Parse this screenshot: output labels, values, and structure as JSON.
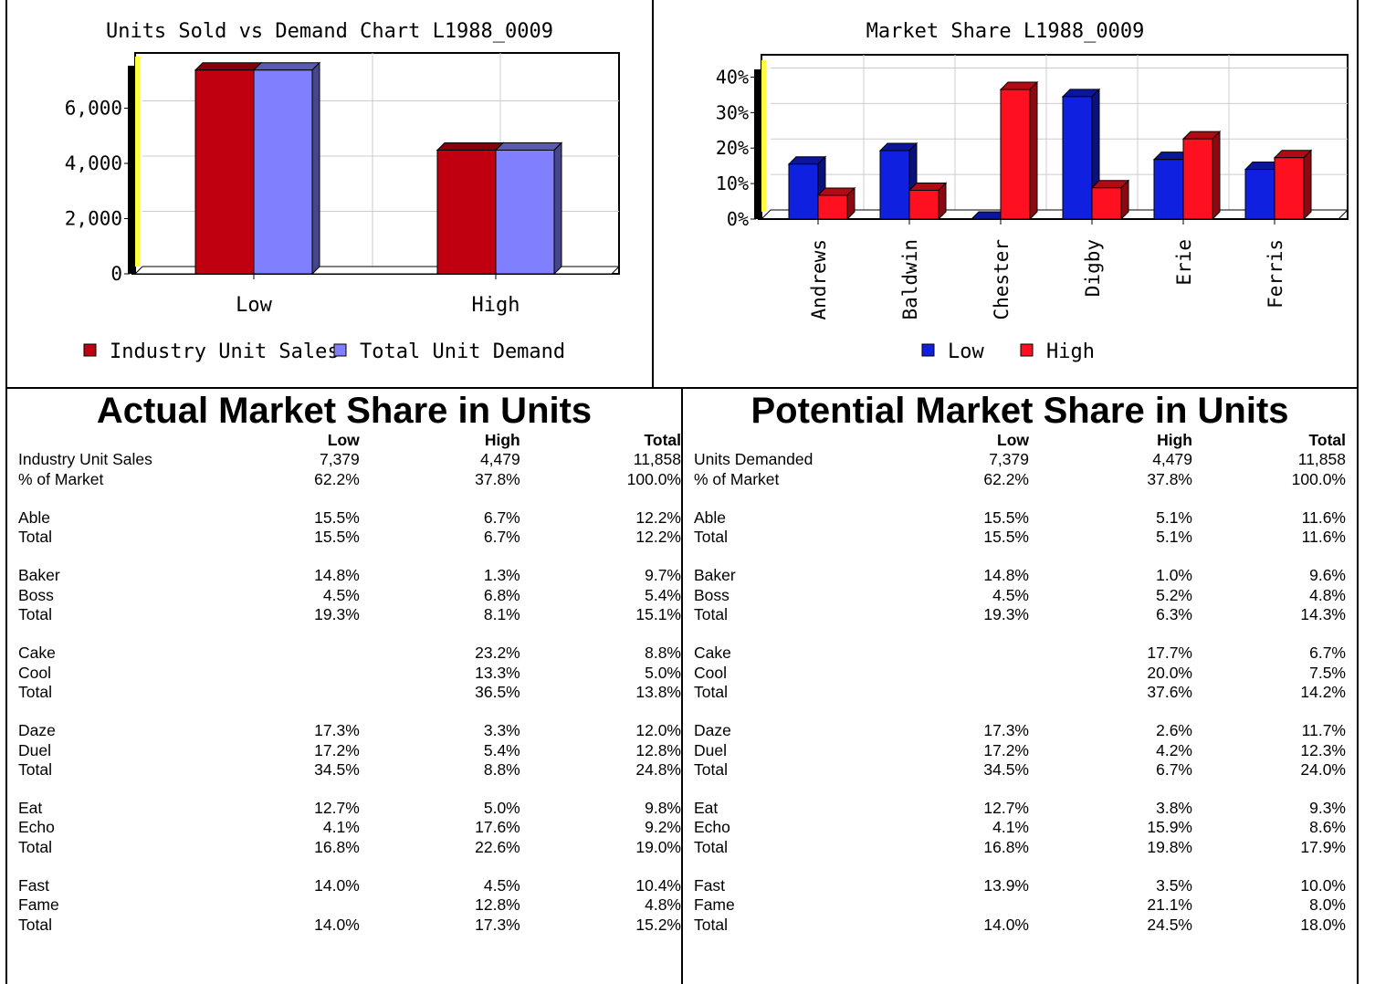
{
  "chart_data": [
    {
      "type": "bar",
      "title": "Units Sold vs Demand Chart  L1988_0009",
      "categories": [
        "Low",
        "High"
      ],
      "series": [
        {
          "name": "Industry Unit Sales",
          "values": [
            7379,
            4479
          ],
          "color": "#C00010"
        },
        {
          "name": "Total Unit Demand",
          "values": [
            7379,
            4479
          ],
          "color": "#8080FF"
        }
      ],
      "yticks": [
        0,
        2000,
        4000,
        6000
      ],
      "ytick_labels": [
        "0",
        "2,000",
        "4,000",
        "6,000"
      ],
      "ylim": [
        0,
        8000
      ],
      "legend": "bottom"
    },
    {
      "type": "bar",
      "title": "Market Share  L1988_0009",
      "categories": [
        "Andrews",
        "Baldwin",
        "Chester",
        "Digby",
        "Erie",
        "Ferris"
      ],
      "series": [
        {
          "name": "Low",
          "values": [
            15.5,
            19.3,
            0,
            34.5,
            16.8,
            14.0
          ],
          "color": "#1020E0"
        },
        {
          "name": "High",
          "values": [
            6.7,
            8.1,
            36.5,
            8.8,
            22.6,
            17.3
          ],
          "color": "#FF1020"
        }
      ],
      "yticks": [
        0,
        10,
        20,
        30,
        40
      ],
      "ytick_labels": [
        "0%",
        "10%",
        "20%",
        "30%",
        "40%"
      ],
      "ylim": [
        0,
        40
      ],
      "legend": "bottom"
    }
  ],
  "actual": {
    "title": "Actual Market Share in Units",
    "headers": [
      "Low",
      "High",
      "Total"
    ],
    "rows": [
      {
        "label": "Industry Unit Sales",
        "low": "7,379",
        "high": "4,479",
        "total": "11,858"
      },
      {
        "label": "% of Market",
        "low": "62.2%",
        "high": "37.8%",
        "total": "100.0%"
      },
      {
        "gap": true
      },
      {
        "label": "Able",
        "low": "15.5%",
        "high": "6.7%",
        "total": "12.2%"
      },
      {
        "label": "Total",
        "low": "15.5%",
        "high": "6.7%",
        "total": "12.2%"
      },
      {
        "gap": true
      },
      {
        "label": "Baker",
        "low": "14.8%",
        "high": "1.3%",
        "total": "9.7%"
      },
      {
        "label": "Boss",
        "low": "4.5%",
        "high": "6.8%",
        "total": "5.4%"
      },
      {
        "label": "Total",
        "low": "19.3%",
        "high": "8.1%",
        "total": "15.1%"
      },
      {
        "gap": true
      },
      {
        "label": "Cake",
        "low": "",
        "high": "23.2%",
        "total": "8.8%"
      },
      {
        "label": "Cool",
        "low": "",
        "high": "13.3%",
        "total": "5.0%"
      },
      {
        "label": "Total",
        "low": "",
        "high": "36.5%",
        "total": "13.8%"
      },
      {
        "gap": true
      },
      {
        "label": "Daze",
        "low": "17.3%",
        "high": "3.3%",
        "total": "12.0%"
      },
      {
        "label": "Duel",
        "low": "17.2%",
        "high": "5.4%",
        "total": "12.8%"
      },
      {
        "label": "Total",
        "low": "34.5%",
        "high": "8.8%",
        "total": "24.8%"
      },
      {
        "gap": true
      },
      {
        "label": "Eat",
        "low": "12.7%",
        "high": "5.0%",
        "total": "9.8%"
      },
      {
        "label": "Echo",
        "low": "4.1%",
        "high": "17.6%",
        "total": "9.2%"
      },
      {
        "label": "Total",
        "low": "16.8%",
        "high": "22.6%",
        "total": "19.0%"
      },
      {
        "gap": true
      },
      {
        "label": "Fast",
        "low": "14.0%",
        "high": "4.5%",
        "total": "10.4%"
      },
      {
        "label": "Fame",
        "low": "",
        "high": "12.8%",
        "total": "4.8%"
      },
      {
        "label": "Total",
        "low": "14.0%",
        "high": "17.3%",
        "total": "15.2%"
      }
    ]
  },
  "potential": {
    "title": "Potential Market Share in Units",
    "headers": [
      "Low",
      "High",
      "Total"
    ],
    "rows": [
      {
        "label": "Units Demanded",
        "low": "7,379",
        "high": "4,479",
        "total": "11,858"
      },
      {
        "label": "% of Market",
        "low": "62.2%",
        "high": "37.8%",
        "total": "100.0%"
      },
      {
        "gap": true
      },
      {
        "label": "Able",
        "low": "15.5%",
        "high": "5.1%",
        "total": "11.6%"
      },
      {
        "label": "Total",
        "low": "15.5%",
        "high": "5.1%",
        "total": "11.6%"
      },
      {
        "gap": true
      },
      {
        "label": "Baker",
        "low": "14.8%",
        "high": "1.0%",
        "total": "9.6%"
      },
      {
        "label": "Boss",
        "low": "4.5%",
        "high": "5.2%",
        "total": "4.8%"
      },
      {
        "label": "Total",
        "low": "19.3%",
        "high": "6.3%",
        "total": "14.3%"
      },
      {
        "gap": true
      },
      {
        "label": "Cake",
        "low": "",
        "high": "17.7%",
        "total": "6.7%"
      },
      {
        "label": "Cool",
        "low": "",
        "high": "20.0%",
        "total": "7.5%"
      },
      {
        "label": "Total",
        "low": "",
        "high": "37.6%",
        "total": "14.2%"
      },
      {
        "gap": true
      },
      {
        "label": "Daze",
        "low": "17.3%",
        "high": "2.6%",
        "total": "11.7%"
      },
      {
        "label": "Duel",
        "low": "17.2%",
        "high": "4.2%",
        "total": "12.3%"
      },
      {
        "label": "Total",
        "low": "34.5%",
        "high": "6.7%",
        "total": "24.0%"
      },
      {
        "gap": true
      },
      {
        "label": "Eat",
        "low": "12.7%",
        "high": "3.8%",
        "total": "9.3%"
      },
      {
        "label": "Echo",
        "low": "4.1%",
        "high": "15.9%",
        "total": "8.6%"
      },
      {
        "label": "Total",
        "low": "16.8%",
        "high": "19.8%",
        "total": "17.9%"
      },
      {
        "gap": true
      },
      {
        "label": "Fast",
        "low": "13.9%",
        "high": "3.5%",
        "total": "10.0%"
      },
      {
        "label": "Fame",
        "low": "",
        "high": "21.1%",
        "total": "8.0%"
      },
      {
        "label": "Total",
        "low": "14.0%",
        "high": "24.5%",
        "total": "18.0%"
      }
    ]
  }
}
